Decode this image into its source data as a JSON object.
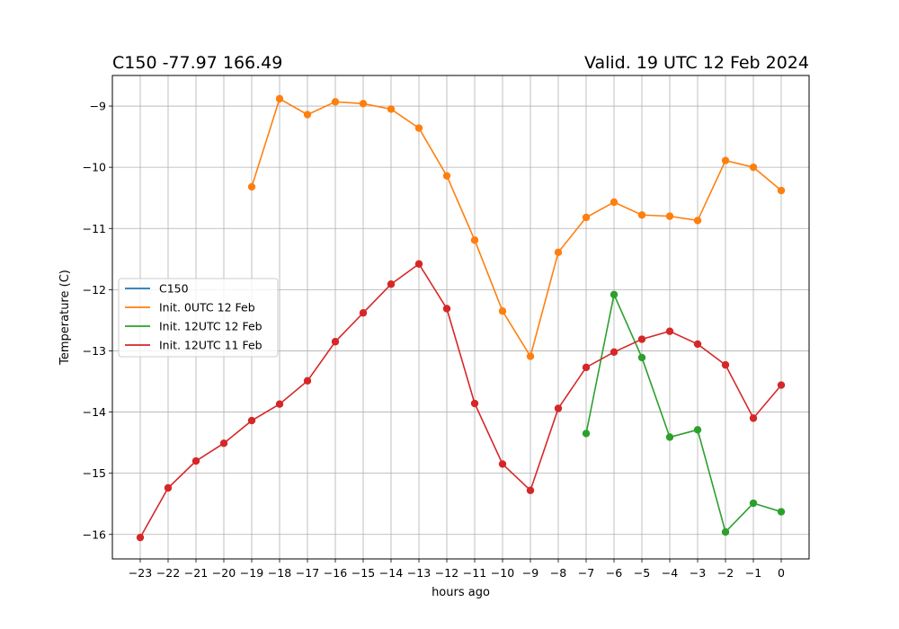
{
  "chart_data": {
    "type": "line",
    "title_left": "C150 -77.97 166.49",
    "title_right": "Valid. 19 UTC 12 Feb 2024",
    "xlabel": "hours ago",
    "ylabel": "Temperature (C)",
    "xlim": [
      -24,
      1
    ],
    "ylim": [
      -16.4,
      -8.5
    ],
    "xticks": [
      -23,
      -22,
      -21,
      -20,
      -19,
      -18,
      -17,
      -16,
      -15,
      -14,
      -13,
      -12,
      -11,
      -10,
      -9,
      -8,
      -7,
      -6,
      -5,
      -4,
      -3,
      -2,
      -1,
      0
    ],
    "xtick_labels": [
      "−23",
      "−22",
      "−21",
      "−20",
      "−19",
      "−18",
      "−17",
      "−16",
      "−15",
      "−14",
      "−13",
      "−12",
      "−11",
      "−10",
      "−9",
      "−8",
      "−7",
      "−6",
      "−5",
      "−4",
      "−3",
      "−2",
      "−1",
      "0"
    ],
    "yticks": [
      -16,
      -15,
      -14,
      -13,
      -12,
      -11,
      -10,
      -9
    ],
    "ytick_labels": [
      "−16",
      "−15",
      "−14",
      "−13",
      "−12",
      "−11",
      "−10",
      "−9"
    ],
    "grid": true,
    "legend_position": "center-left",
    "series": [
      {
        "name": "C150",
        "color": "#1f77b4",
        "x": [],
        "y": []
      },
      {
        "name": "Init. 0UTC 12 Feb",
        "color": "#ff7f0e",
        "x": [
          -19,
          -18,
          -17,
          -16,
          -15,
          -14,
          -13,
          -12,
          -11,
          -10,
          -9,
          -8,
          -7,
          -6,
          -5,
          -4,
          -3,
          -2,
          -1,
          0
        ],
        "y": [
          -10.32,
          -8.88,
          -9.14,
          -8.93,
          -8.96,
          -9.05,
          -9.36,
          -10.14,
          -11.19,
          -12.35,
          -13.09,
          -11.39,
          -10.82,
          -10.57,
          -10.78,
          -10.8,
          -10.87,
          -9.89,
          -10.0,
          -10.38
        ]
      },
      {
        "name": "Init. 12UTC 12 Feb",
        "color": "#2ca02c",
        "x": [
          -7,
          -6,
          -5,
          -4,
          -3,
          -2,
          -1,
          0
        ],
        "y": [
          -14.35,
          -12.08,
          -13.11,
          -14.41,
          -14.29,
          -15.96,
          -15.49,
          -15.63
        ]
      },
      {
        "name": "Init. 12UTC 11 Feb",
        "color": "#d62728",
        "x": [
          -23,
          -22,
          -21,
          -20,
          -19,
          -18,
          -17,
          -16,
          -15,
          -14,
          -13,
          -12,
          -11,
          -10,
          -9,
          -8,
          -7,
          -6,
          -5,
          -4,
          -3,
          -2,
          -1,
          0
        ],
        "y": [
          -16.05,
          -15.24,
          -14.8,
          -14.51,
          -14.14,
          -13.87,
          -13.49,
          -12.85,
          -12.38,
          -11.91,
          -11.58,
          -12.31,
          -13.86,
          -14.85,
          -15.28,
          -13.94,
          -13.27,
          -13.02,
          -12.81,
          -12.68,
          -12.89,
          -13.23,
          -14.1,
          -13.56
        ]
      }
    ]
  }
}
